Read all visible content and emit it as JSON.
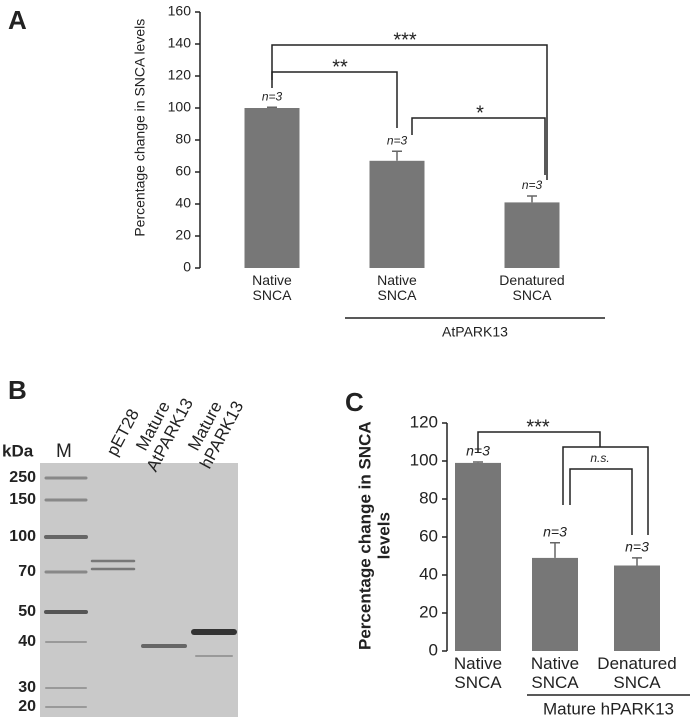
{
  "chart_data": [
    {
      "type": "bar",
      "panel_label": "A",
      "y_label": "Percentage change in SNCA levels",
      "categories": [
        "Native SNCA",
        "Native SNCA",
        "Denatured SNCA"
      ],
      "values": [
        100,
        67,
        41
      ],
      "errors": [
        0.5,
        6,
        4
      ],
      "color": "#777777",
      "n_labels": [
        "n=3",
        "n=3",
        "n=3"
      ],
      "significance_labels": [
        "***",
        "**",
        "*"
      ],
      "group_label": "AtPARK13",
      "ylim": [
        0,
        160
      ],
      "yticks": [
        0,
        20,
        40,
        60,
        80,
        100,
        120,
        140,
        160
      ]
    },
    {
      "type": "bar",
      "panel_label": "C",
      "y_label": "Percentage change in SNCA levels",
      "categories": [
        "Native SNCA",
        "Native SNCA",
        "Denatured SNCA"
      ],
      "values": [
        99,
        49,
        45
      ],
      "errors": [
        0.5,
        8,
        4
      ],
      "color": "#777777",
      "n_labels": [
        "n=3",
        "n=3",
        "n=3"
      ],
      "significance_labels": [
        "***",
        "n.s."
      ],
      "group_label": "Mature hPARK13",
      "ylim": [
        0,
        120
      ],
      "yticks": [
        0,
        20,
        40,
        60,
        80,
        100,
        120
      ]
    }
  ],
  "gel": {
    "panel_label": "B",
    "unit_label": "kDa",
    "marker_lane_label": "M",
    "lane_labels": [
      "pET28",
      "Mature AtPARK13",
      "Mature hPARK13"
    ],
    "markers": [
      250,
      150,
      100,
      70,
      50,
      40,
      30,
      20
    ]
  }
}
